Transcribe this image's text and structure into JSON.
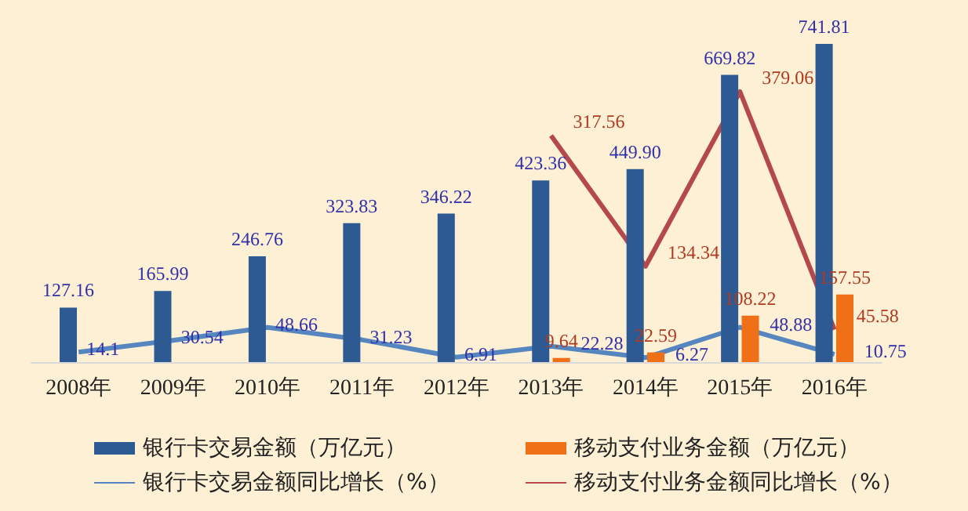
{
  "chart_data": {
    "type": "bar",
    "categories": [
      "2008年",
      "2009年",
      "2010年",
      "2011年",
      "2012年",
      "2013年",
      "2014年",
      "2015年",
      "2016年"
    ],
    "series": [
      {
        "name": "银行卡交易金额（万亿元）",
        "color": "#2e5a93",
        "values": [
          127.16,
          165.99,
          246.76,
          323.83,
          346.22,
          423.36,
          449.9,
          669.82,
          741.81
        ],
        "value_labels": [
          "127.16",
          "165.99",
          "246.76",
          "323.83",
          "346.22",
          "423.36",
          "449.90",
          "669.82",
          "741.81"
        ]
      },
      {
        "name": "移动支付业务金额（万亿元）",
        "color": "#f07017",
        "values": [
          null,
          null,
          null,
          null,
          null,
          9.64,
          22.59,
          108.22,
          157.55
        ]
      },
      {
        "name": "银行卡交易金额同比增长（%）",
        "type": "line",
        "axis": "y2",
        "color": "#5586c0",
        "values": [
          14.1,
          30.54,
          48.66,
          31.23,
          6.91,
          22.28,
          6.27,
          48.88,
          10.75
        ]
      },
      {
        "name": "移动支付业务金额同比增长（%）",
        "type": "line",
        "axis": "y2",
        "color": "#b5484a",
        "values": [
          null,
          null,
          null,
          null,
          null,
          317.56,
          134.34,
          379.06,
          45.58
        ]
      }
    ],
    "tick_labels": "x",
    "data_labels": true,
    "grid": false,
    "legend": "bottom",
    "marker": "none"
  }
}
